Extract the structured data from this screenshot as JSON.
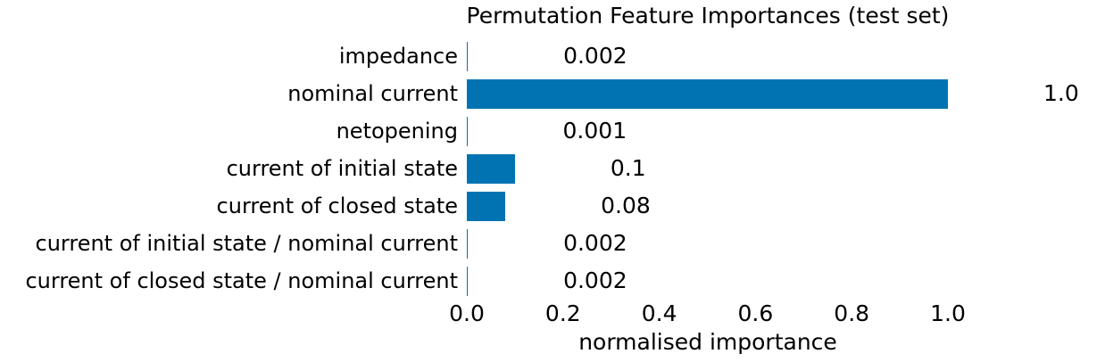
{
  "chart_data": {
    "type": "bar",
    "orientation": "horizontal",
    "title": "Permutation Feature Importances (test set)",
    "xlabel": "normalised importance",
    "categories": [
      "impedance",
      "nominal current",
      "netopening",
      "current of initial state",
      "current of closed state",
      "current of initial state / nominal current",
      "current of closed state / nominal current"
    ],
    "values": [
      0.002,
      1.0,
      0.001,
      0.1,
      0.08,
      0.002,
      0.002
    ],
    "value_labels": [
      "0.002",
      "1.0",
      "0.001",
      "0.1",
      "0.08",
      "0.002",
      "0.002"
    ],
    "xticks": [
      "0.0",
      "0.2",
      "0.4",
      "0.6",
      "0.8",
      "1.0"
    ],
    "xlim": [
      0.0,
      1.0
    ],
    "grid": false,
    "legend": "none",
    "bar_color": "#0173b2",
    "text_color": "#000000",
    "background_color": "#ffffff"
  }
}
